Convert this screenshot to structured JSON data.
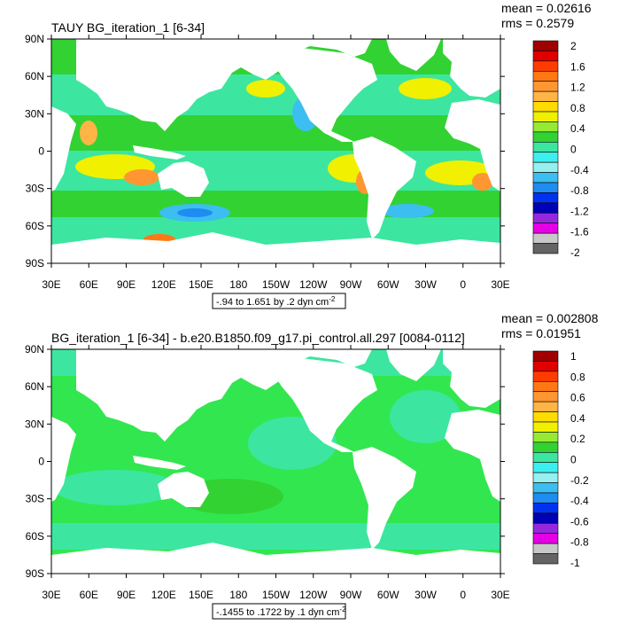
{
  "panels": [
    {
      "title": "TAUY BG_iteration_1 [6-34]",
      "mean_label": "mean = 0.02616",
      "rms_label": "rms = 0.2579",
      "lat_labels": [
        "90N",
        "60N",
        "30N",
        "0",
        "30S",
        "60S",
        "90S"
      ],
      "lon_labels": [
        "30E",
        "60E",
        "90E",
        "120E",
        "150E",
        "180",
        "150W",
        "120W",
        "90W",
        "60W",
        "30W",
        "0",
        "30E"
      ],
      "range_label": "-.94 to 1.651 by .2 dyn cm",
      "range_exponent": "-2",
      "colorbar_ticks": [
        2,
        1.6,
        1.2,
        0.8,
        0.4,
        0,
        -0.4,
        -0.8,
        -1.2,
        -1.6,
        -2
      ],
      "colorbar_colors": [
        "#a00000",
        "#e00000",
        "#ff3c00",
        "#ff7814",
        "#ff9632",
        "#ffb446",
        "#ffdc00",
        "#f0f000",
        "#96eb32",
        "#32d232",
        "#3ce6a0",
        "#3cf0f0",
        "#96f0f0",
        "#3cbef0",
        "#1e8cf0",
        "#0032f0",
        "#0000b4",
        "#9628dc",
        "#e600e6",
        "#c8c8c8",
        "#646464"
      ]
    },
    {
      "title": "BG_iteration_1 [6-34] - b.e20.B1850.f09_g17.pi_control.all.297 [0084-0112]",
      "mean_label": "mean = 0.002808",
      "rms_label": "rms = 0.01951",
      "lat_labels": [
        "90N",
        "60N",
        "30N",
        "0",
        "30S",
        "60S",
        "90S"
      ],
      "lon_labels": [
        "30E",
        "60E",
        "90E",
        "120E",
        "150E",
        "180",
        "150W",
        "120W",
        "90W",
        "60W",
        "30W",
        "0",
        "30E"
      ],
      "range_label": "-.1455 to .1722 by .1 dyn cm",
      "range_exponent": "-2",
      "colorbar_ticks": [
        1,
        0.8,
        0.6,
        0.4,
        0.2,
        0,
        -0.2,
        -0.4,
        -0.6,
        -0.8,
        -1
      ],
      "colorbar_colors": [
        "#a00000",
        "#e00000",
        "#ff3c00",
        "#ff7814",
        "#ff9632",
        "#ffb446",
        "#ffdc00",
        "#f0f000",
        "#96eb32",
        "#32d232",
        "#3ce6a0",
        "#3cf0f0",
        "#96f0f0",
        "#3cbef0",
        "#1e8cf0",
        "#0032f0",
        "#0000b4",
        "#9628dc",
        "#e600e6",
        "#c8c8c8",
        "#646464"
      ]
    }
  ]
}
